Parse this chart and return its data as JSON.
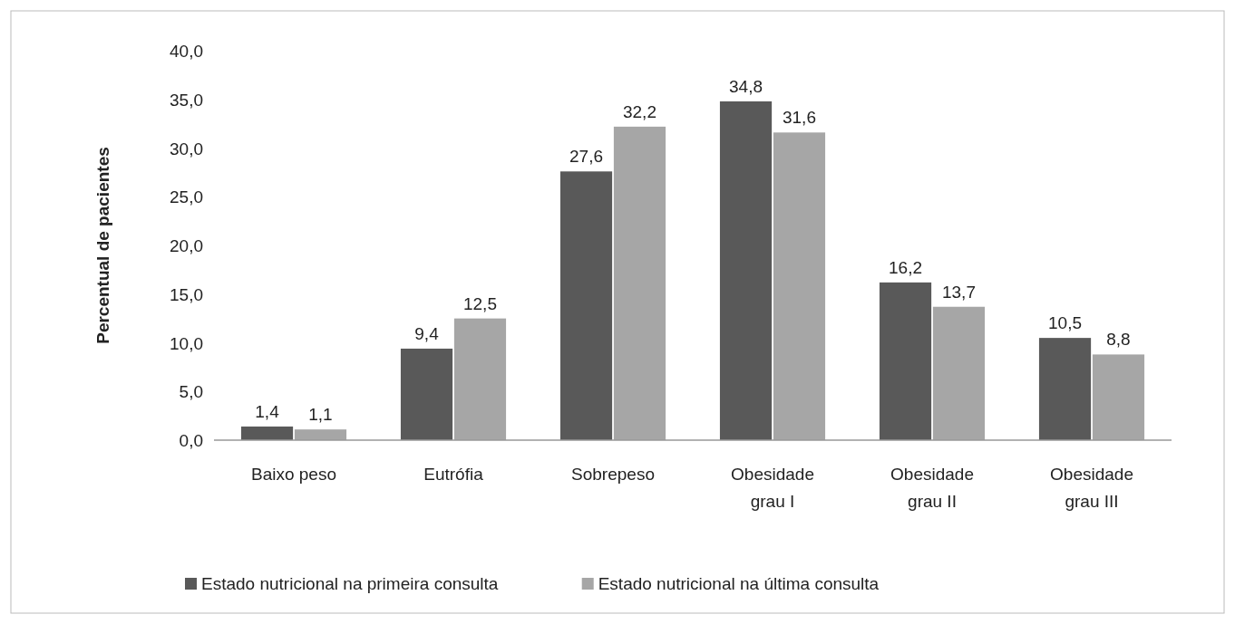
{
  "chart_data": {
    "type": "bar",
    "ylabel": "Percentual de pacientes",
    "categories": [
      "Baixo peso",
      "Eutrófia",
      "Sobrepeso",
      "Obesidade grau I",
      "Obesidade grau II",
      "Obesidade grau III"
    ],
    "series": [
      {
        "name": "Estado nutricional na primeira consulta",
        "color": "#595959",
        "values": [
          1.4,
          9.4,
          27.6,
          34.8,
          16.2,
          10.5
        ],
        "value_labels": [
          "1,4",
          "9,4",
          "27,6",
          "34,8",
          "16,2",
          "10,5"
        ]
      },
      {
        "name": "Estado nutricional na última consulta",
        "color": "#a6a6a6",
        "values": [
          1.1,
          12.5,
          32.2,
          31.6,
          13.7,
          8.8
        ],
        "value_labels": [
          "1,1",
          "12,5",
          "32,2",
          "31,6",
          "13,7",
          "8,8"
        ]
      }
    ],
    "ylim": [
      0,
      40
    ],
    "yticks": [
      {
        "value": 0,
        "label": "0,0"
      },
      {
        "value": 5,
        "label": "5,0"
      },
      {
        "value": 10,
        "label": "10,0"
      },
      {
        "value": 15,
        "label": "15,0"
      },
      {
        "value": 20,
        "label": "20,0"
      },
      {
        "value": 25,
        "label": "25,0"
      },
      {
        "value": 30,
        "label": "30,0"
      },
      {
        "value": 35,
        "label": "35,0"
      },
      {
        "value": 40,
        "label": "40,0"
      }
    ],
    "grid": false,
    "legend": "bottom"
  }
}
